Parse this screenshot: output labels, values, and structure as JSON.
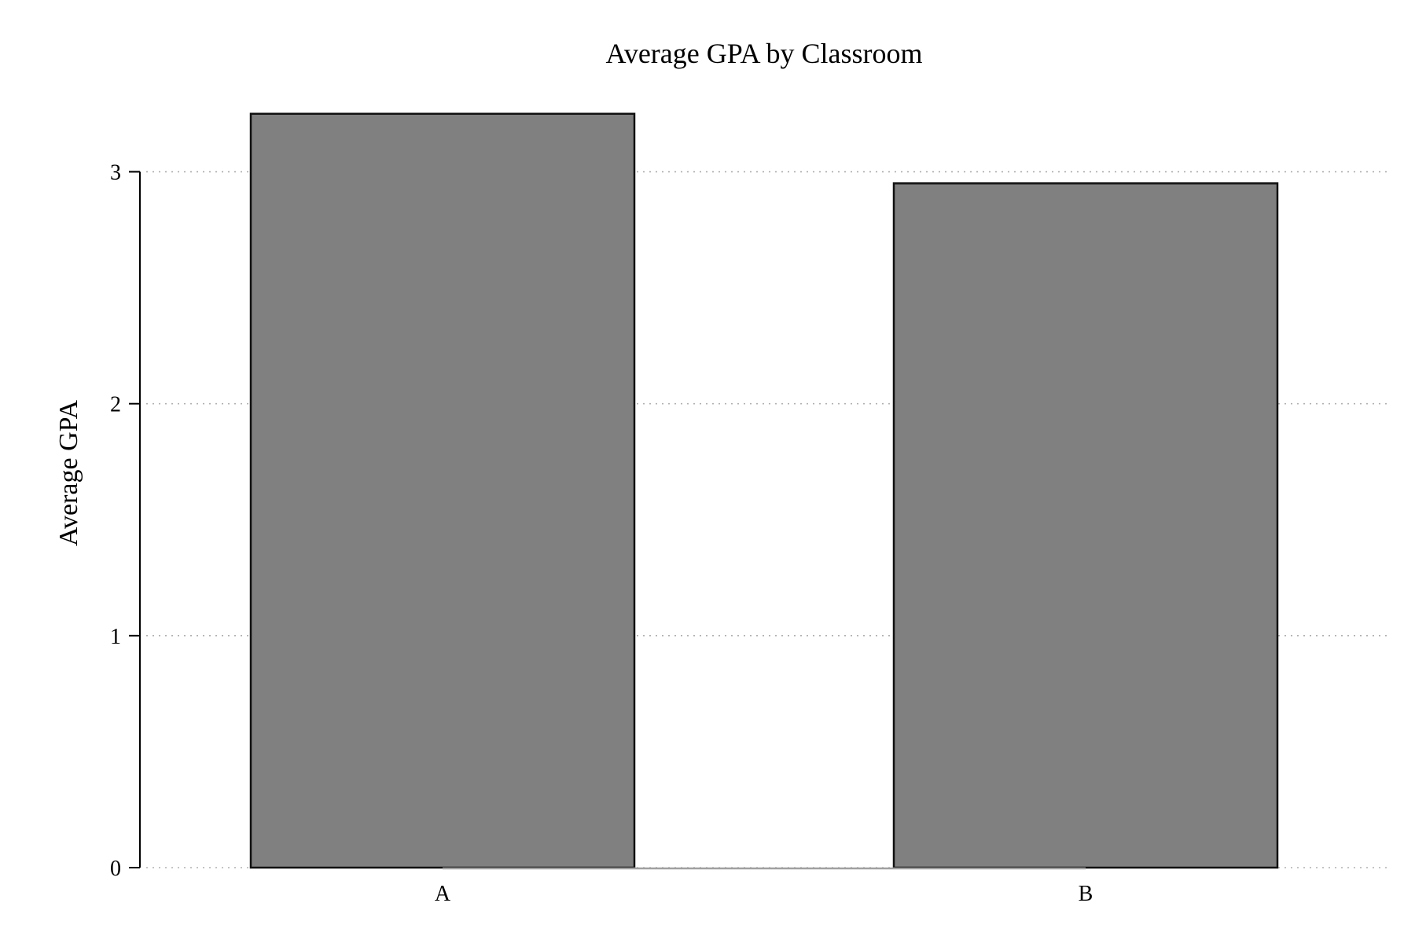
{
  "chart_data": {
    "type": "bar",
    "title": "Average GPA by Classroom",
    "xlabel": "",
    "ylabel": "Average GPA",
    "categories": [
      "A",
      "B"
    ],
    "values": [
      3.25,
      2.95
    ],
    "ylim": [
      0,
      3.3
    ],
    "yticks": [
      0,
      1,
      2,
      3
    ],
    "ytick_labels": [
      "0",
      "1",
      "2",
      "3"
    ],
    "grid": true,
    "grid_style": "dotted",
    "legend": "none",
    "bar_color": "#808080",
    "bar_edge_color": "#111111",
    "grid_color": "#b0b0b0",
    "axis_color": "#000000",
    "baseline_color": "#a0a0a0"
  }
}
